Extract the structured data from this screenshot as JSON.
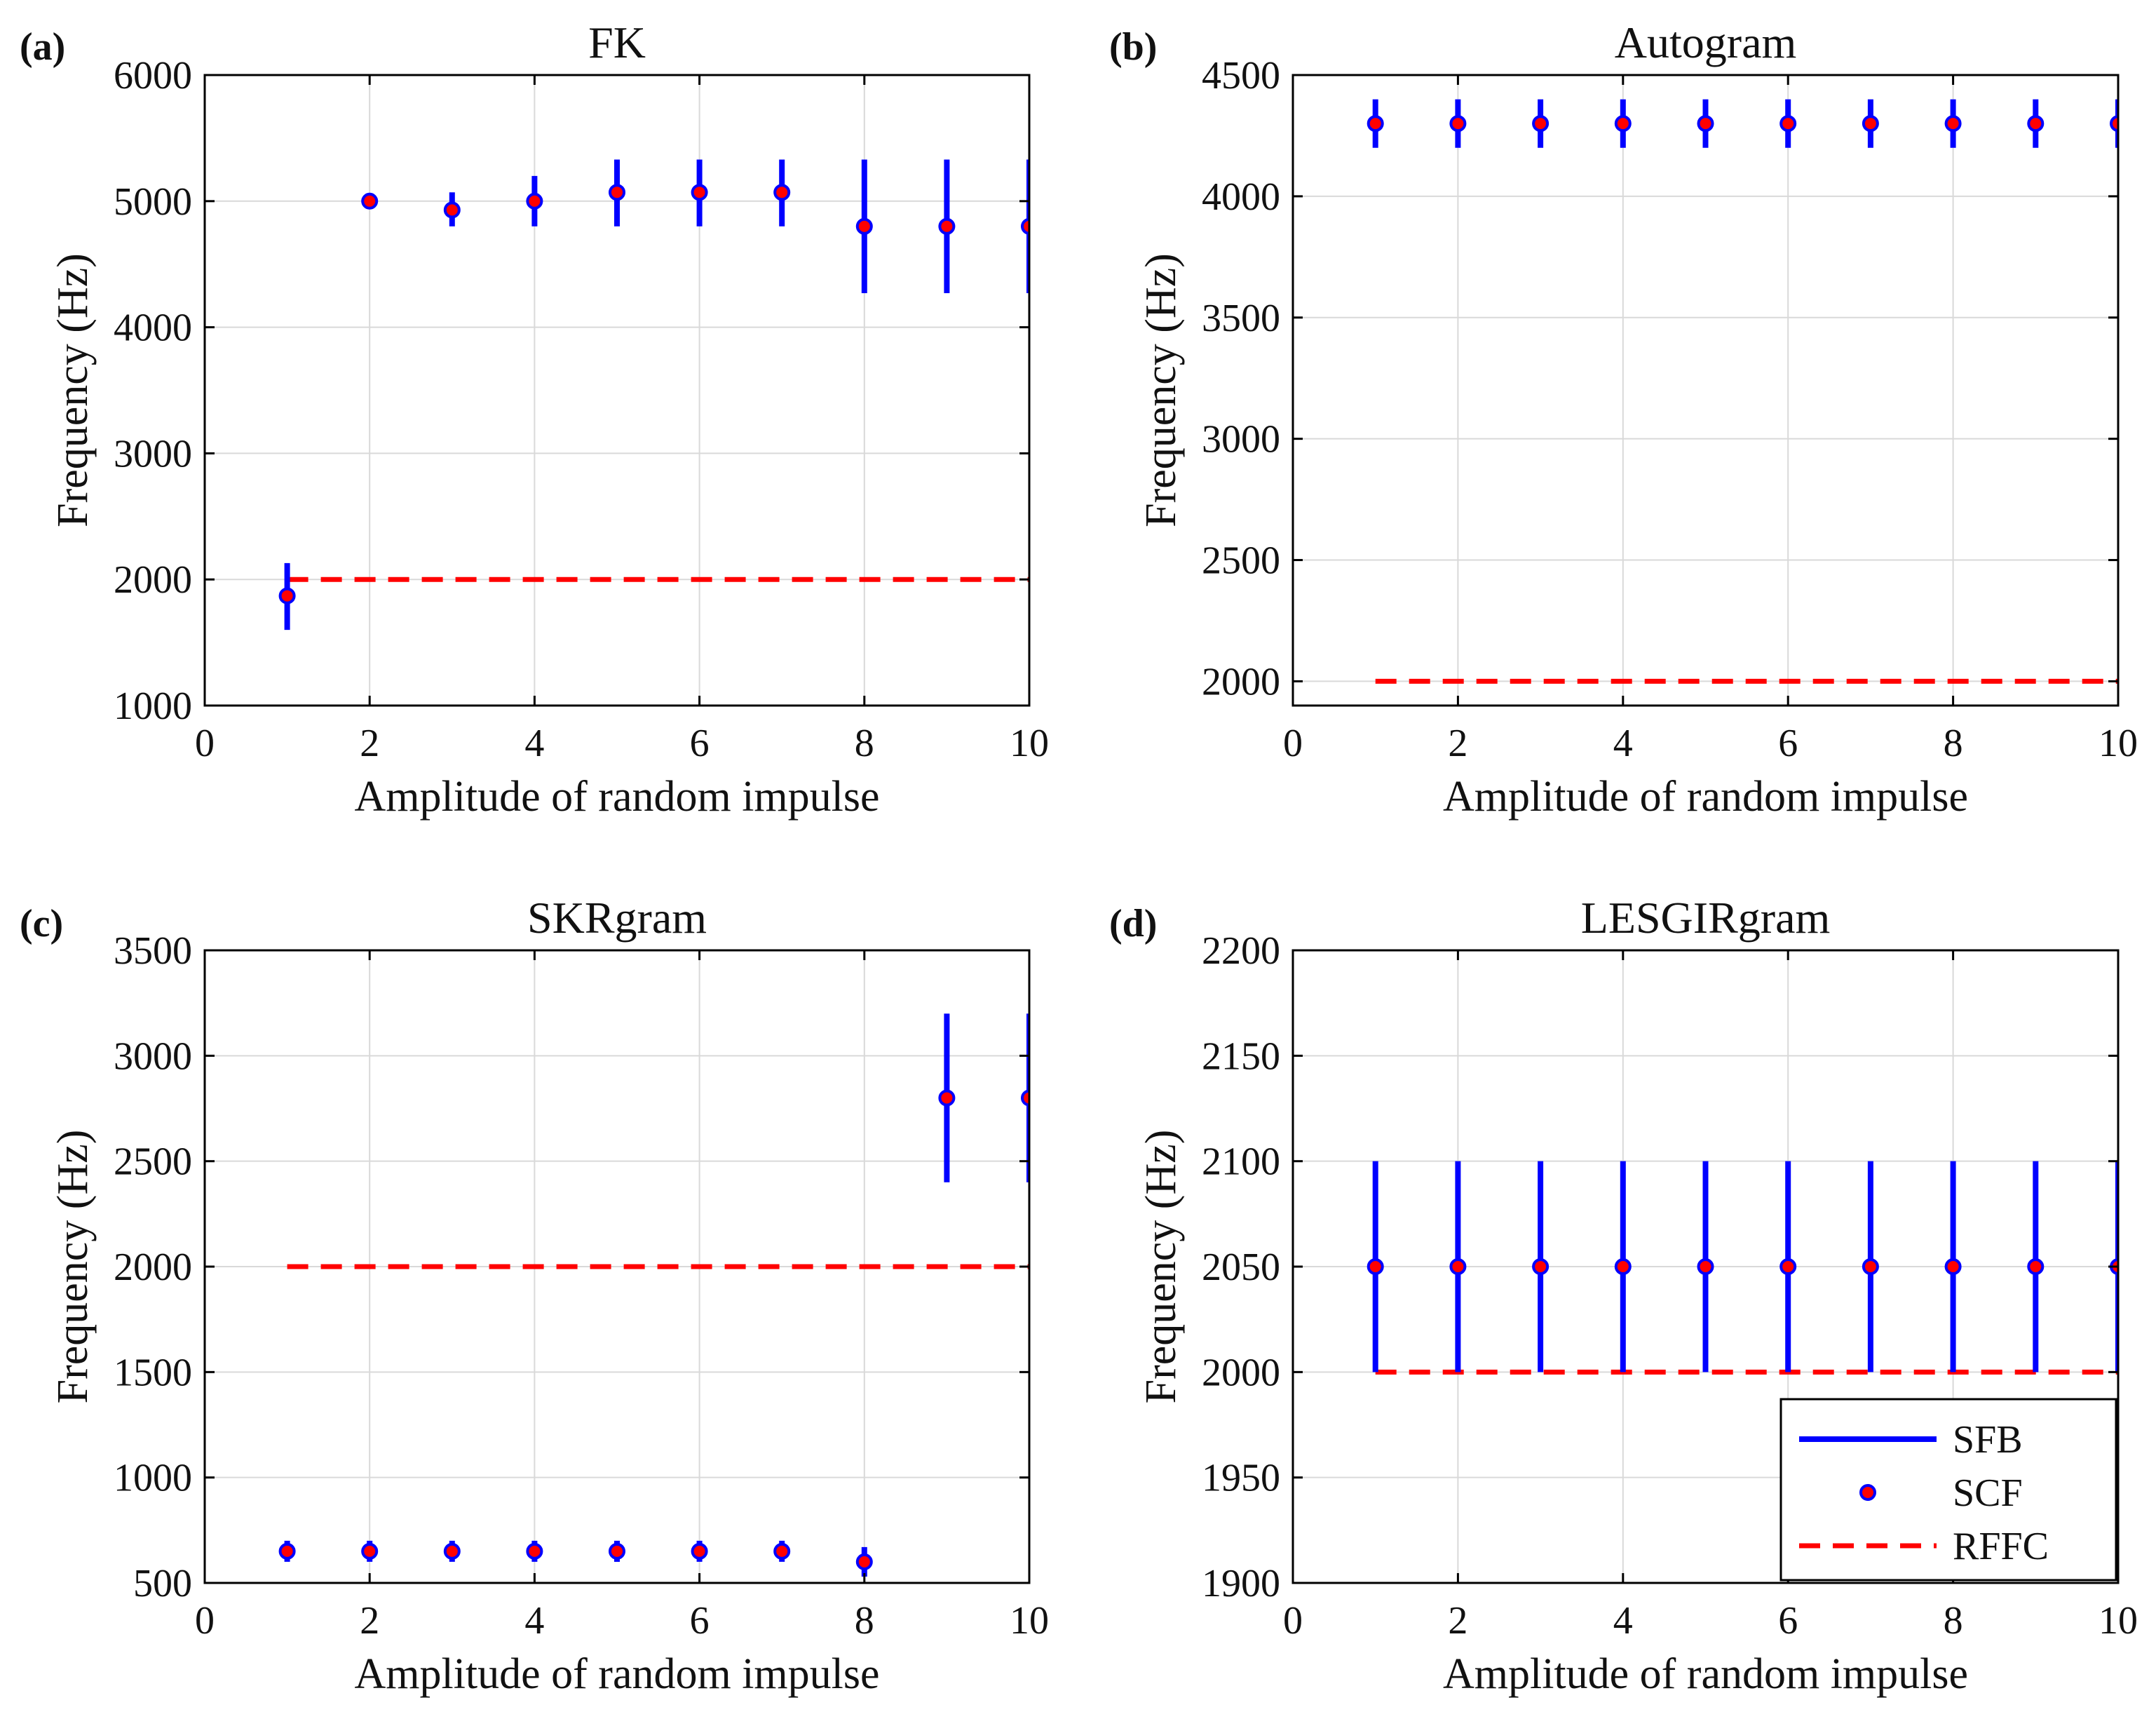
{
  "colors": {
    "sfb": "#0000ff",
    "scf_fill": "#ff0000",
    "rffc": "#ff0000",
    "grid": "#d9d9d9",
    "axis": "#000000"
  },
  "legend": {
    "placement": "bottom-right",
    "panel": 3,
    "entries": [
      "SFB",
      "SCF",
      "RFFC"
    ]
  },
  "chart_data": [
    {
      "type": "errorbar",
      "panel": "(a)",
      "title": "FK",
      "xlabel": "Amplitude of random impulse",
      "ylabel": "Frequency (Hz)",
      "xlim": [
        0,
        10
      ],
      "ylim": [
        1000,
        6000
      ],
      "xticks": [
        "0",
        "2",
        "4",
        "6",
        "8",
        "10"
      ],
      "yticks": [
        "1000",
        "2000",
        "3000",
        "4000",
        "5000",
        "6000"
      ],
      "grid": true,
      "x": [
        1,
        2,
        3,
        4,
        5,
        6,
        7,
        8,
        9,
        10
      ],
      "scf": [
        1870,
        5000,
        4930,
        5000,
        5070,
        5070,
        5070,
        4800,
        4800,
        4800
      ],
      "sfb": [
        [
          1600,
          2130
        ],
        [
          4990,
          5010
        ],
        [
          4800,
          5070
        ],
        [
          4800,
          5200
        ],
        [
          4800,
          5330
        ],
        [
          4800,
          5330
        ],
        [
          4800,
          5330
        ],
        [
          4270,
          5330
        ],
        [
          4270,
          5330
        ],
        [
          4270,
          5330
        ]
      ],
      "rffc": 2000
    },
    {
      "type": "errorbar",
      "panel": "(b)",
      "title": "Autogram",
      "xlabel": "Amplitude of random impulse",
      "ylabel": "Frequency (Hz)",
      "xlim": [
        0,
        10
      ],
      "ylim": [
        1900,
        4500
      ],
      "xticks": [
        "0",
        "2",
        "4",
        "6",
        "8",
        "10"
      ],
      "yticks": [
        "2000",
        "2500",
        "3000",
        "3500",
        "4000",
        "4500"
      ],
      "grid": true,
      "x": [
        1,
        2,
        3,
        4,
        5,
        6,
        7,
        8,
        9,
        10
      ],
      "scf": [
        4300,
        4300,
        4300,
        4300,
        4300,
        4300,
        4300,
        4300,
        4300,
        4300
      ],
      "sfb": [
        [
          4200,
          4400
        ],
        [
          4200,
          4400
        ],
        [
          4200,
          4400
        ],
        [
          4200,
          4400
        ],
        [
          4200,
          4400
        ],
        [
          4200,
          4400
        ],
        [
          4200,
          4400
        ],
        [
          4200,
          4400
        ],
        [
          4200,
          4400
        ],
        [
          4200,
          4400
        ]
      ],
      "rffc": 2000
    },
    {
      "type": "errorbar",
      "panel": "(c)",
      "title": "SKRgram",
      "xlabel": "Amplitude of random impulse",
      "ylabel": "Frequency (Hz)",
      "xlim": [
        0,
        10
      ],
      "ylim": [
        500,
        3500
      ],
      "xticks": [
        "0",
        "2",
        "4",
        "6",
        "8",
        "10"
      ],
      "yticks": [
        "500",
        "1000",
        "1500",
        "2000",
        "2500",
        "3000",
        "3500"
      ],
      "grid": true,
      "x": [
        1,
        2,
        3,
        4,
        5,
        6,
        7,
        8,
        9,
        10
      ],
      "scf": [
        650,
        650,
        650,
        650,
        650,
        650,
        650,
        600,
        2800,
        2800
      ],
      "sfb": [
        [
          600,
          700
        ],
        [
          600,
          700
        ],
        [
          600,
          700
        ],
        [
          600,
          700
        ],
        [
          600,
          700
        ],
        [
          600,
          700
        ],
        [
          600,
          700
        ],
        [
          530,
          670
        ],
        [
          2400,
          3200
        ],
        [
          2400,
          3200
        ]
      ],
      "rffc": 2000
    },
    {
      "type": "errorbar",
      "panel": "(d)",
      "title": "LESGIRgram",
      "xlabel": "Amplitude of random impulse",
      "ylabel": "Frequency (Hz)",
      "xlim": [
        0,
        10
      ],
      "ylim": [
        1900,
        2200
      ],
      "xticks": [
        "0",
        "2",
        "4",
        "6",
        "8",
        "10"
      ],
      "yticks": [
        "1900",
        "1950",
        "2000",
        "2050",
        "2100",
        "2150",
        "2200"
      ],
      "grid": true,
      "x": [
        1,
        2,
        3,
        4,
        5,
        6,
        7,
        8,
        9,
        10
      ],
      "scf": [
        2050,
        2050,
        2050,
        2050,
        2050,
        2050,
        2050,
        2050,
        2050,
        2050
      ],
      "sfb": [
        [
          2000,
          2100
        ],
        [
          2000,
          2100
        ],
        [
          2000,
          2100
        ],
        [
          2000,
          2100
        ],
        [
          2000,
          2100
        ],
        [
          2000,
          2100
        ],
        [
          2000,
          2100
        ],
        [
          2000,
          2100
        ],
        [
          2000,
          2100
        ],
        [
          2000,
          2100
        ]
      ],
      "rffc": 2000
    }
  ]
}
